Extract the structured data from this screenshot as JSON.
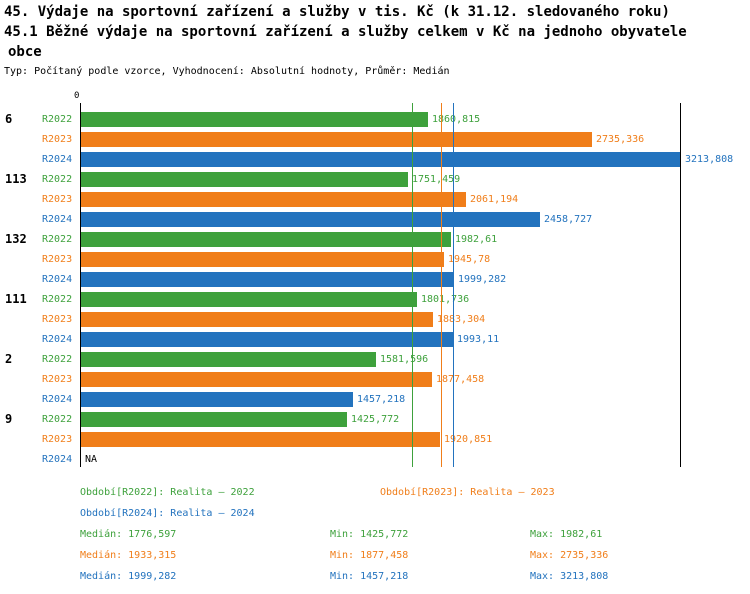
{
  "title": {
    "line1": "45. Výdaje na sportovní zařízení a služby v tis. Kč (k 31.12. sledovaného roku)",
    "line2": "45.1 Běžné výdaje na sportovní zařízení a služby celkem v Kč na jednoho obyvatele",
    "line3": "obce",
    "meta": "Typ: Počítaný podle vzorce, Vyhodnocení: Absolutní hodnoty, Průměr: Medián"
  },
  "colors": {
    "r2022": "#3ea13c",
    "r2023": "#f07e1a",
    "r2024": "#2373be",
    "axis": "#000000"
  },
  "chart_data": {
    "type": "bar",
    "orientation": "horizontal",
    "value_axis": {
      "min": 0,
      "max": 3213.808,
      "zero_label": "0"
    },
    "series": [
      {
        "key": "r2022",
        "name": "R2022"
      },
      {
        "key": "r2023",
        "name": "R2023"
      },
      {
        "key": "r2024",
        "name": "R2024"
      }
    ],
    "groups": [
      {
        "label": "6",
        "values": [
          1860.815,
          2735.336,
          3213.808
        ],
        "value_labels": [
          "1860,815",
          "2735,336",
          "3213,808"
        ]
      },
      {
        "label": "113",
        "values": [
          1751.459,
          2061.194,
          2458.727
        ],
        "value_labels": [
          "1751,459",
          "2061,194",
          "2458,727"
        ]
      },
      {
        "label": "132",
        "values": [
          1982.61,
          1945.78,
          1999.282
        ],
        "value_labels": [
          "1982,61",
          "1945,78",
          "1999,282"
        ]
      },
      {
        "label": "111",
        "values": [
          1801.736,
          1883.304,
          1993.11
        ],
        "value_labels": [
          "1801,736",
          "1883,304",
          "1993,11"
        ]
      },
      {
        "label": "2",
        "values": [
          1581.596,
          1877.458,
          1457.218
        ],
        "value_labels": [
          "1581,596",
          "1877,458",
          "1457,218"
        ]
      },
      {
        "label": "9",
        "values": [
          1425.772,
          1920.851,
          null
        ],
        "value_labels": [
          "1425,772",
          "1920,851",
          "NA"
        ]
      }
    ],
    "ref_lines": [
      {
        "value": 1776.597,
        "key": "r2022"
      },
      {
        "value": 1933.315,
        "key": "r2023"
      },
      {
        "value": 1999.282,
        "key": "r2024"
      },
      {
        "value": 3213.808,
        "key": "axis"
      }
    ],
    "grid": false,
    "legend_position": "bottom"
  },
  "legend": {
    "items": [
      {
        "key": "r2022",
        "label": "Období[R2022]: Realita – 2022"
      },
      {
        "key": "r2023",
        "label": "Období[R2023]: Realita – 2023"
      },
      {
        "key": "r2024",
        "label": "Období[R2024]: Realita – 2024"
      }
    ]
  },
  "stats": {
    "rows": [
      {
        "key": "r2022",
        "median": "Medián: 1776,597",
        "min": "Min: 1425,772",
        "max": "Max: 1982,61"
      },
      {
        "key": "r2023",
        "median": "Medián: 1933,315",
        "min": "Min: 1877,458",
        "max": "Max: 2735,336"
      },
      {
        "key": "r2024",
        "median": "Medián: 1999,282",
        "min": "Min: 1457,218",
        "max": "Max: 3213,808"
      }
    ]
  }
}
